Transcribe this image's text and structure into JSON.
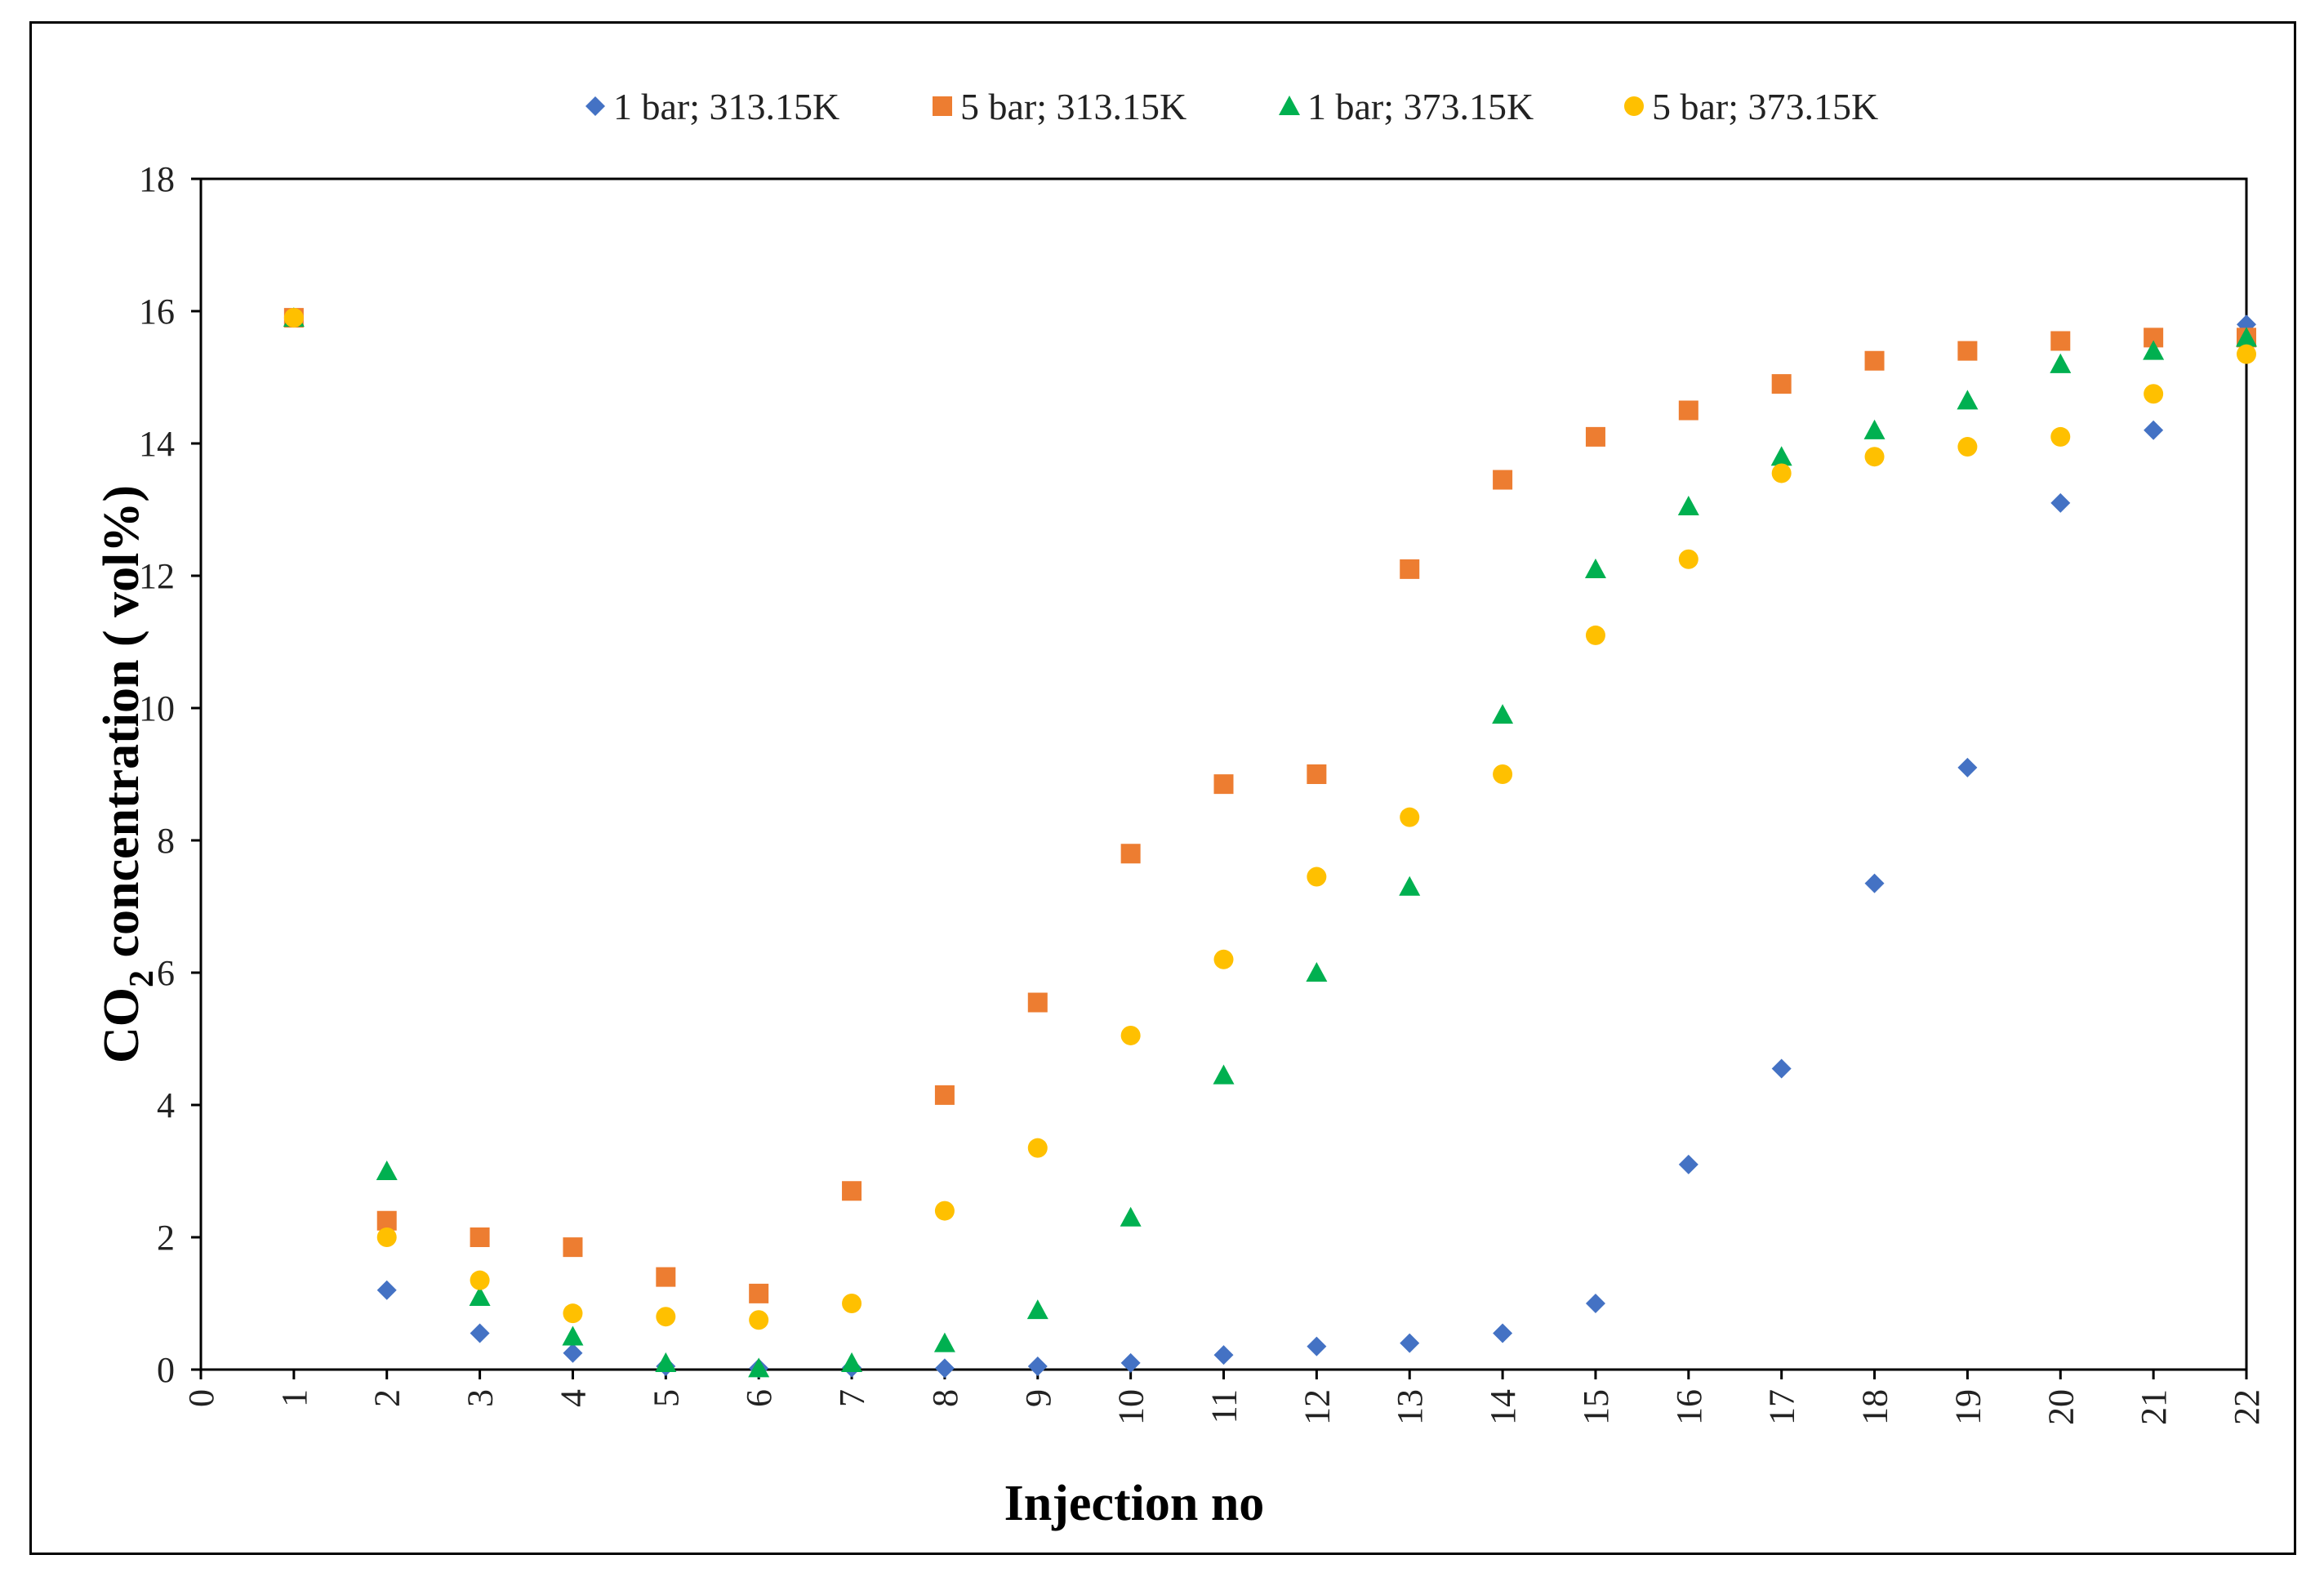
{
  "chart_data": {
    "type": "scatter",
    "title": "",
    "xlabel": "Injection no",
    "ylabel": {
      "prefix": "CO",
      "subscript": "2",
      "suffix": " concentration ( vol%)"
    },
    "xlim": [
      0,
      22
    ],
    "ylim": [
      0,
      18
    ],
    "x_ticks": [
      "0",
      "1",
      "2",
      "3",
      "4",
      "5",
      "6",
      "7",
      "8",
      "9",
      "10",
      "11",
      "12",
      "13",
      "14",
      "15",
      "16",
      "17",
      "18",
      "19",
      "20",
      "21",
      "22"
    ],
    "y_ticks": [
      "0",
      "2",
      "4",
      "6",
      "8",
      "10",
      "12",
      "14",
      "16",
      "18"
    ],
    "legend_position": "top",
    "x": [
      1,
      2,
      3,
      4,
      5,
      6,
      7,
      8,
      9,
      10,
      11,
      12,
      13,
      14,
      15,
      16,
      17,
      18,
      19,
      20,
      21,
      22
    ],
    "series": [
      {
        "name": "1 bar; 313.15K",
        "marker": "diamond",
        "color": "#4472C4",
        "values": [
          15.9,
          1.2,
          0.55,
          0.25,
          0.05,
          0.02,
          0.03,
          0.02,
          0.05,
          0.1,
          0.22,
          0.35,
          0.4,
          0.55,
          1.0,
          3.1,
          4.55,
          7.35,
          9.1,
          13.1,
          14.2,
          15.8
        ]
      },
      {
        "name": "5 bar; 313.15K",
        "marker": "square",
        "color": "#ED7D31",
        "values": [
          15.9,
          2.25,
          2.0,
          1.85,
          1.4,
          1.15,
          2.7,
          4.15,
          5.55,
          7.8,
          8.85,
          9.0,
          12.1,
          13.45,
          14.1,
          14.5,
          14.9,
          15.25,
          15.4,
          15.55,
          15.6,
          15.6
        ]
      },
      {
        "name": "1 bar; 373.15K",
        "marker": "triangle",
        "color": "#00B050",
        "values": [
          15.9,
          3.0,
          1.1,
          0.5,
          0.1,
          0.02,
          0.1,
          0.4,
          0.9,
          2.3,
          4.45,
          6.0,
          7.3,
          9.9,
          12.1,
          13.05,
          13.8,
          14.2,
          14.65,
          15.2,
          15.4,
          15.6
        ]
      },
      {
        "name": "5 bar; 373.15K",
        "marker": "circle",
        "color": "#FFC000",
        "values": [
          15.9,
          2.0,
          1.35,
          0.85,
          0.8,
          0.75,
          1.0,
          2.4,
          3.35,
          5.05,
          6.2,
          7.45,
          8.35,
          9.0,
          11.1,
          12.25,
          13.55,
          13.8,
          13.95,
          14.1,
          14.75,
          15.35
        ]
      }
    ]
  }
}
